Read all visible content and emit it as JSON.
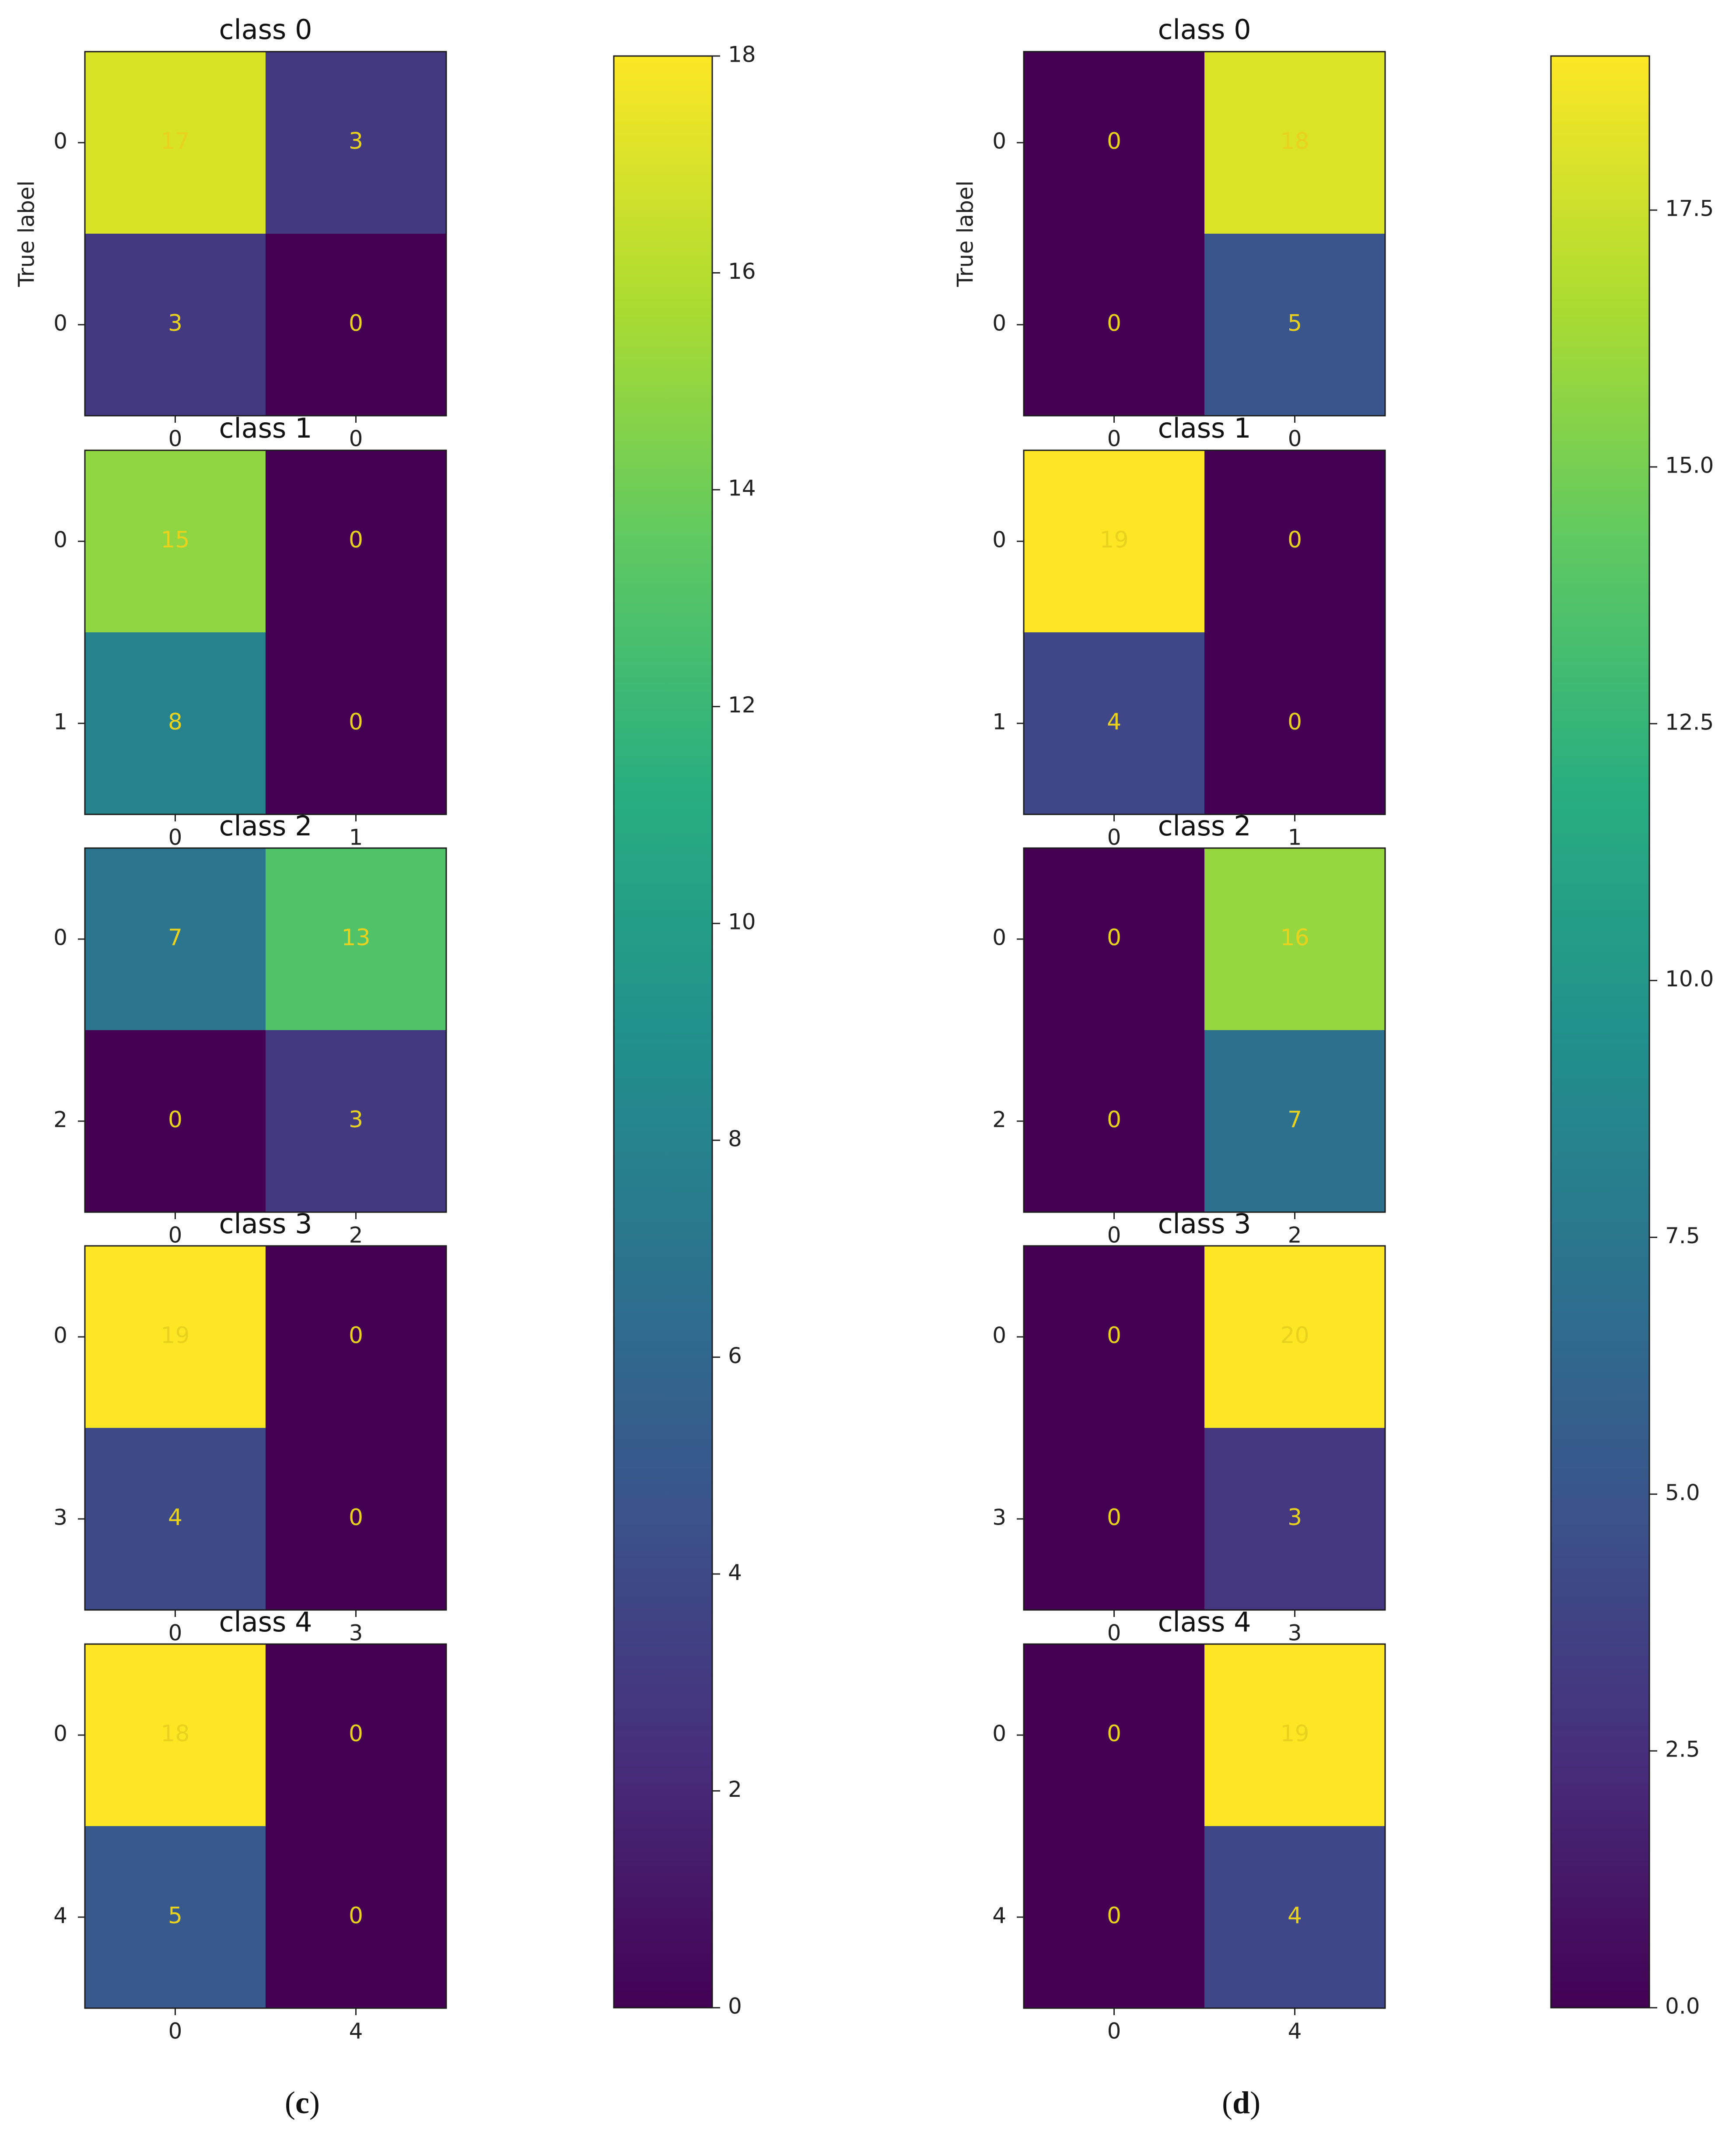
{
  "colormap": "viridis",
  "chart_data": [
    {
      "type": "heatmap",
      "panel_label": "c",
      "y_axis_label": "True label",
      "colorbar": {
        "min": 0,
        "max": 18,
        "ticks": [
          "0",
          "2",
          "4",
          "6",
          "8",
          "10",
          "12",
          "14",
          "16",
          "18"
        ]
      },
      "matrices": [
        {
          "title": "class 0",
          "y_tick_labels": [
            "0",
            "0"
          ],
          "x_tick_labels": [
            "0",
            "0"
          ],
          "values": [
            [
              17,
              3
            ],
            [
              3,
              0
            ]
          ]
        },
        {
          "title": "class 1",
          "y_tick_labels": [
            "0",
            "1"
          ],
          "x_tick_labels": [
            "0",
            "1"
          ],
          "values": [
            [
              15,
              0
            ],
            [
              8,
              0
            ]
          ]
        },
        {
          "title": "class 2",
          "y_tick_labels": [
            "0",
            "2"
          ],
          "x_tick_labels": [
            "0",
            "2"
          ],
          "values": [
            [
              7,
              13
            ],
            [
              0,
              3
            ]
          ]
        },
        {
          "title": "class 3",
          "y_tick_labels": [
            "0",
            "3"
          ],
          "x_tick_labels": [
            "0",
            "3"
          ],
          "values": [
            [
              19,
              0
            ],
            [
              4,
              0
            ]
          ]
        },
        {
          "title": "class 4",
          "y_tick_labels": [
            "0",
            "4"
          ],
          "x_tick_labels": [
            "0",
            "4"
          ],
          "values": [
            [
              18,
              0
            ],
            [
              5,
              0
            ]
          ]
        }
      ]
    },
    {
      "type": "heatmap",
      "panel_label": "d",
      "y_axis_label": "True label",
      "colorbar": {
        "min": 0,
        "max": 19,
        "ticks": [
          "0.0",
          "2.5",
          "5.0",
          "7.5",
          "10.0",
          "12.5",
          "15.0",
          "17.5"
        ]
      },
      "matrices": [
        {
          "title": "class 0",
          "y_tick_labels": [
            "0",
            "0"
          ],
          "x_tick_labels": [
            "0",
            "0"
          ],
          "values": [
            [
              0,
              18
            ],
            [
              0,
              5
            ]
          ]
        },
        {
          "title": "class 1",
          "y_tick_labels": [
            "0",
            "1"
          ],
          "x_tick_labels": [
            "0",
            "1"
          ],
          "values": [
            [
              19,
              0
            ],
            [
              4,
              0
            ]
          ]
        },
        {
          "title": "class 2",
          "y_tick_labels": [
            "0",
            "2"
          ],
          "x_tick_labels": [
            "0",
            "2"
          ],
          "values": [
            [
              0,
              16
            ],
            [
              0,
              7
            ]
          ]
        },
        {
          "title": "class 3",
          "y_tick_labels": [
            "0",
            "3"
          ],
          "x_tick_labels": [
            "0",
            "3"
          ],
          "values": [
            [
              0,
              20
            ],
            [
              0,
              3
            ]
          ]
        },
        {
          "title": "class 4",
          "y_tick_labels": [
            "0",
            "4"
          ],
          "x_tick_labels": [
            "0",
            "4"
          ],
          "values": [
            [
              0,
              19
            ],
            [
              0,
              4
            ]
          ]
        }
      ]
    }
  ]
}
